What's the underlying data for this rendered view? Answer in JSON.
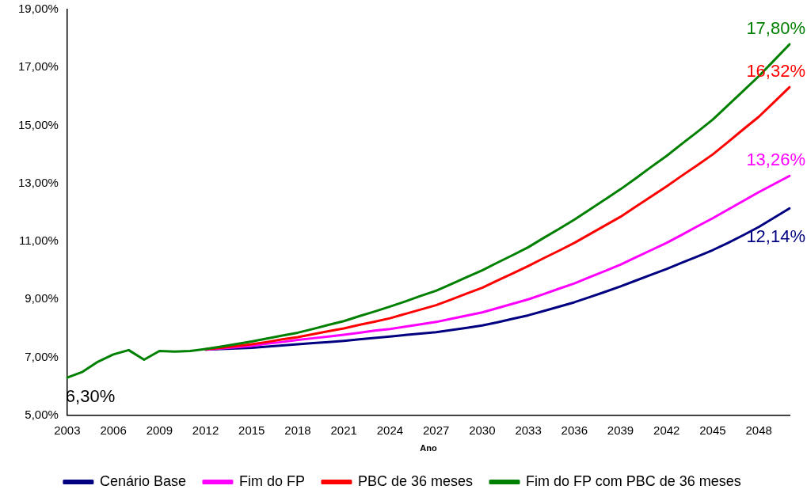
{
  "chart_data": {
    "type": "line",
    "xlabel": "Ano",
    "categories": [
      "2003",
      null,
      null,
      "2006",
      null,
      null,
      "2009",
      null,
      null,
      "2012",
      null,
      null,
      "2015",
      null,
      null,
      "2018",
      null,
      null,
      "2021",
      null,
      null,
      "2024",
      null,
      null,
      "2027",
      null,
      null,
      "2030",
      null,
      null,
      "2033",
      null,
      null,
      "2036",
      null,
      null,
      "2039",
      null,
      null,
      "2042",
      null,
      null,
      "2045",
      null,
      null,
      "2048",
      null,
      null
    ],
    "ylim": [
      5,
      19
    ],
    "yticks": [
      {
        "value": 5,
        "label": "5,00%"
      },
      {
        "value": 7,
        "label": "7,00%"
      },
      {
        "value": 9,
        "label": "9,00%"
      },
      {
        "value": 11,
        "label": "11,00%"
      },
      {
        "value": 13,
        "label": "13,00%"
      },
      {
        "value": 15,
        "label": "15,00%"
      },
      {
        "value": 17,
        "label": "17,00%"
      },
      {
        "value": 19,
        "label": "19,00%"
      }
    ],
    "grid": false,
    "legend": "bottom",
    "marker": "none",
    "line_style": "solid",
    "annotations": [
      {
        "text": "6,30%",
        "x": "2003",
        "y": 6.3
      }
    ],
    "series": [
      {
        "name": "Cenário Base",
        "color": "#000080",
        "values": [
          null,
          null,
          null,
          null,
          null,
          null,
          null,
          null,
          null,
          7.27,
          7.29,
          7.31,
          7.33,
          7.37,
          7.41,
          7.45,
          7.49,
          7.53,
          7.57,
          7.62,
          7.67,
          7.72,
          7.77,
          7.82,
          7.87,
          7.94,
          8.02,
          8.1,
          8.21,
          8.33,
          8.45,
          8.6,
          8.75,
          8.9,
          9.08,
          9.26,
          9.45,
          9.65,
          9.85,
          10.05,
          10.27,
          10.48,
          10.7,
          10.95,
          11.22,
          11.5,
          11.82,
          12.14
        ],
        "value_labels": [
          null,
          null,
          null,
          null,
          null,
          null,
          null,
          null,
          null,
          null,
          null,
          null,
          null,
          null,
          null,
          null,
          null,
          null,
          null,
          null,
          null,
          null,
          null,
          null,
          null,
          null,
          null,
          null,
          null,
          null,
          null,
          null,
          null,
          null,
          null,
          null,
          null,
          null,
          null,
          null,
          null,
          null,
          null,
          null,
          null,
          null,
          null,
          "12,14%"
        ]
      },
      {
        "name": "Fim do FP",
        "color": "#ff00ff",
        "values": [
          null,
          null,
          null,
          null,
          null,
          null,
          null,
          null,
          null,
          7.27,
          7.31,
          7.35,
          7.4,
          7.47,
          7.53,
          7.6,
          7.66,
          7.72,
          7.78,
          7.85,
          7.92,
          7.98,
          8.06,
          8.14,
          8.22,
          8.33,
          8.44,
          8.55,
          8.7,
          8.85,
          9.0,
          9.18,
          9.37,
          9.55,
          9.77,
          9.98,
          10.2,
          10.45,
          10.7,
          10.95,
          11.23,
          11.52,
          11.8,
          12.1,
          12.4,
          12.7,
          12.98,
          13.26
        ],
        "value_labels": [
          null,
          null,
          null,
          null,
          null,
          null,
          null,
          null,
          null,
          null,
          null,
          null,
          null,
          null,
          null,
          null,
          null,
          null,
          null,
          null,
          null,
          null,
          null,
          null,
          null,
          null,
          null,
          null,
          null,
          null,
          null,
          null,
          null,
          null,
          null,
          null,
          null,
          null,
          null,
          null,
          null,
          null,
          null,
          null,
          null,
          null,
          null,
          "13,26%"
        ]
      },
      {
        "name": "PBC de 36 meses",
        "color": "#ff0000",
        "values": [
          null,
          null,
          null,
          null,
          null,
          null,
          null,
          null,
          null,
          7.28,
          7.33,
          7.39,
          7.45,
          7.53,
          7.62,
          7.7,
          7.8,
          7.9,
          8.0,
          8.12,
          8.23,
          8.35,
          8.5,
          8.65,
          8.8,
          9.0,
          9.2,
          9.4,
          9.65,
          9.9,
          10.15,
          10.42,
          10.68,
          10.95,
          11.25,
          11.55,
          11.85,
          12.2,
          12.55,
          12.9,
          13.27,
          13.63,
          14.0,
          14.43,
          14.87,
          15.3,
          15.81,
          16.32
        ],
        "value_labels": [
          null,
          null,
          null,
          null,
          null,
          null,
          null,
          null,
          null,
          null,
          null,
          null,
          null,
          null,
          null,
          null,
          null,
          null,
          null,
          null,
          null,
          null,
          null,
          null,
          null,
          null,
          null,
          null,
          null,
          null,
          null,
          null,
          null,
          null,
          null,
          null,
          null,
          null,
          null,
          null,
          null,
          null,
          null,
          null,
          null,
          null,
          null,
          "16,32%"
        ]
      },
      {
        "name": "Fim do FP com PBC de 36 meses",
        "color": "#008000",
        "values": [
          6.3,
          6.5,
          6.85,
          7.1,
          7.25,
          6.92,
          7.22,
          7.2,
          7.22,
          7.29,
          7.37,
          7.46,
          7.55,
          7.65,
          7.75,
          7.85,
          7.98,
          8.12,
          8.25,
          8.42,
          8.58,
          8.75,
          8.93,
          9.12,
          9.3,
          9.53,
          9.77,
          10.0,
          10.27,
          10.53,
          10.8,
          11.12,
          11.43,
          11.75,
          12.1,
          12.45,
          12.8,
          13.18,
          13.57,
          13.95,
          14.37,
          14.78,
          15.2,
          15.7,
          16.2,
          16.7,
          17.25,
          17.8
        ],
        "value_labels": [
          null,
          null,
          null,
          null,
          null,
          null,
          null,
          null,
          null,
          null,
          null,
          null,
          null,
          null,
          null,
          null,
          null,
          null,
          null,
          null,
          null,
          null,
          null,
          null,
          null,
          null,
          null,
          null,
          null,
          null,
          null,
          null,
          null,
          null,
          null,
          null,
          null,
          null,
          null,
          null,
          null,
          null,
          null,
          null,
          null,
          null,
          null,
          "17,80%"
        ]
      }
    ]
  }
}
